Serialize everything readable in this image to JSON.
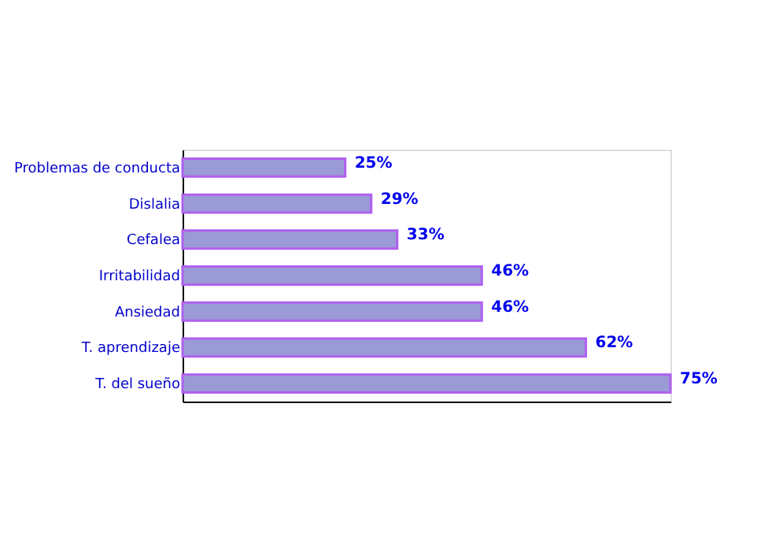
{
  "chart_data": {
    "type": "bar",
    "orientation": "horizontal",
    "categories": [
      "Problemas de conducta",
      "Dislalia",
      "Cefalea",
      "Irritabilidad",
      "Ansiedad",
      "T. aprendizaje",
      "T. del sueño"
    ],
    "values": [
      25,
      29,
      33,
      46,
      46,
      62,
      75
    ],
    "value_labels": [
      "25%",
      "29%",
      "33%",
      "46%",
      "46%",
      "62%",
      "75%"
    ],
    "color": "#9a9ad6",
    "tick_labels": "y",
    "grid": false
  }
}
